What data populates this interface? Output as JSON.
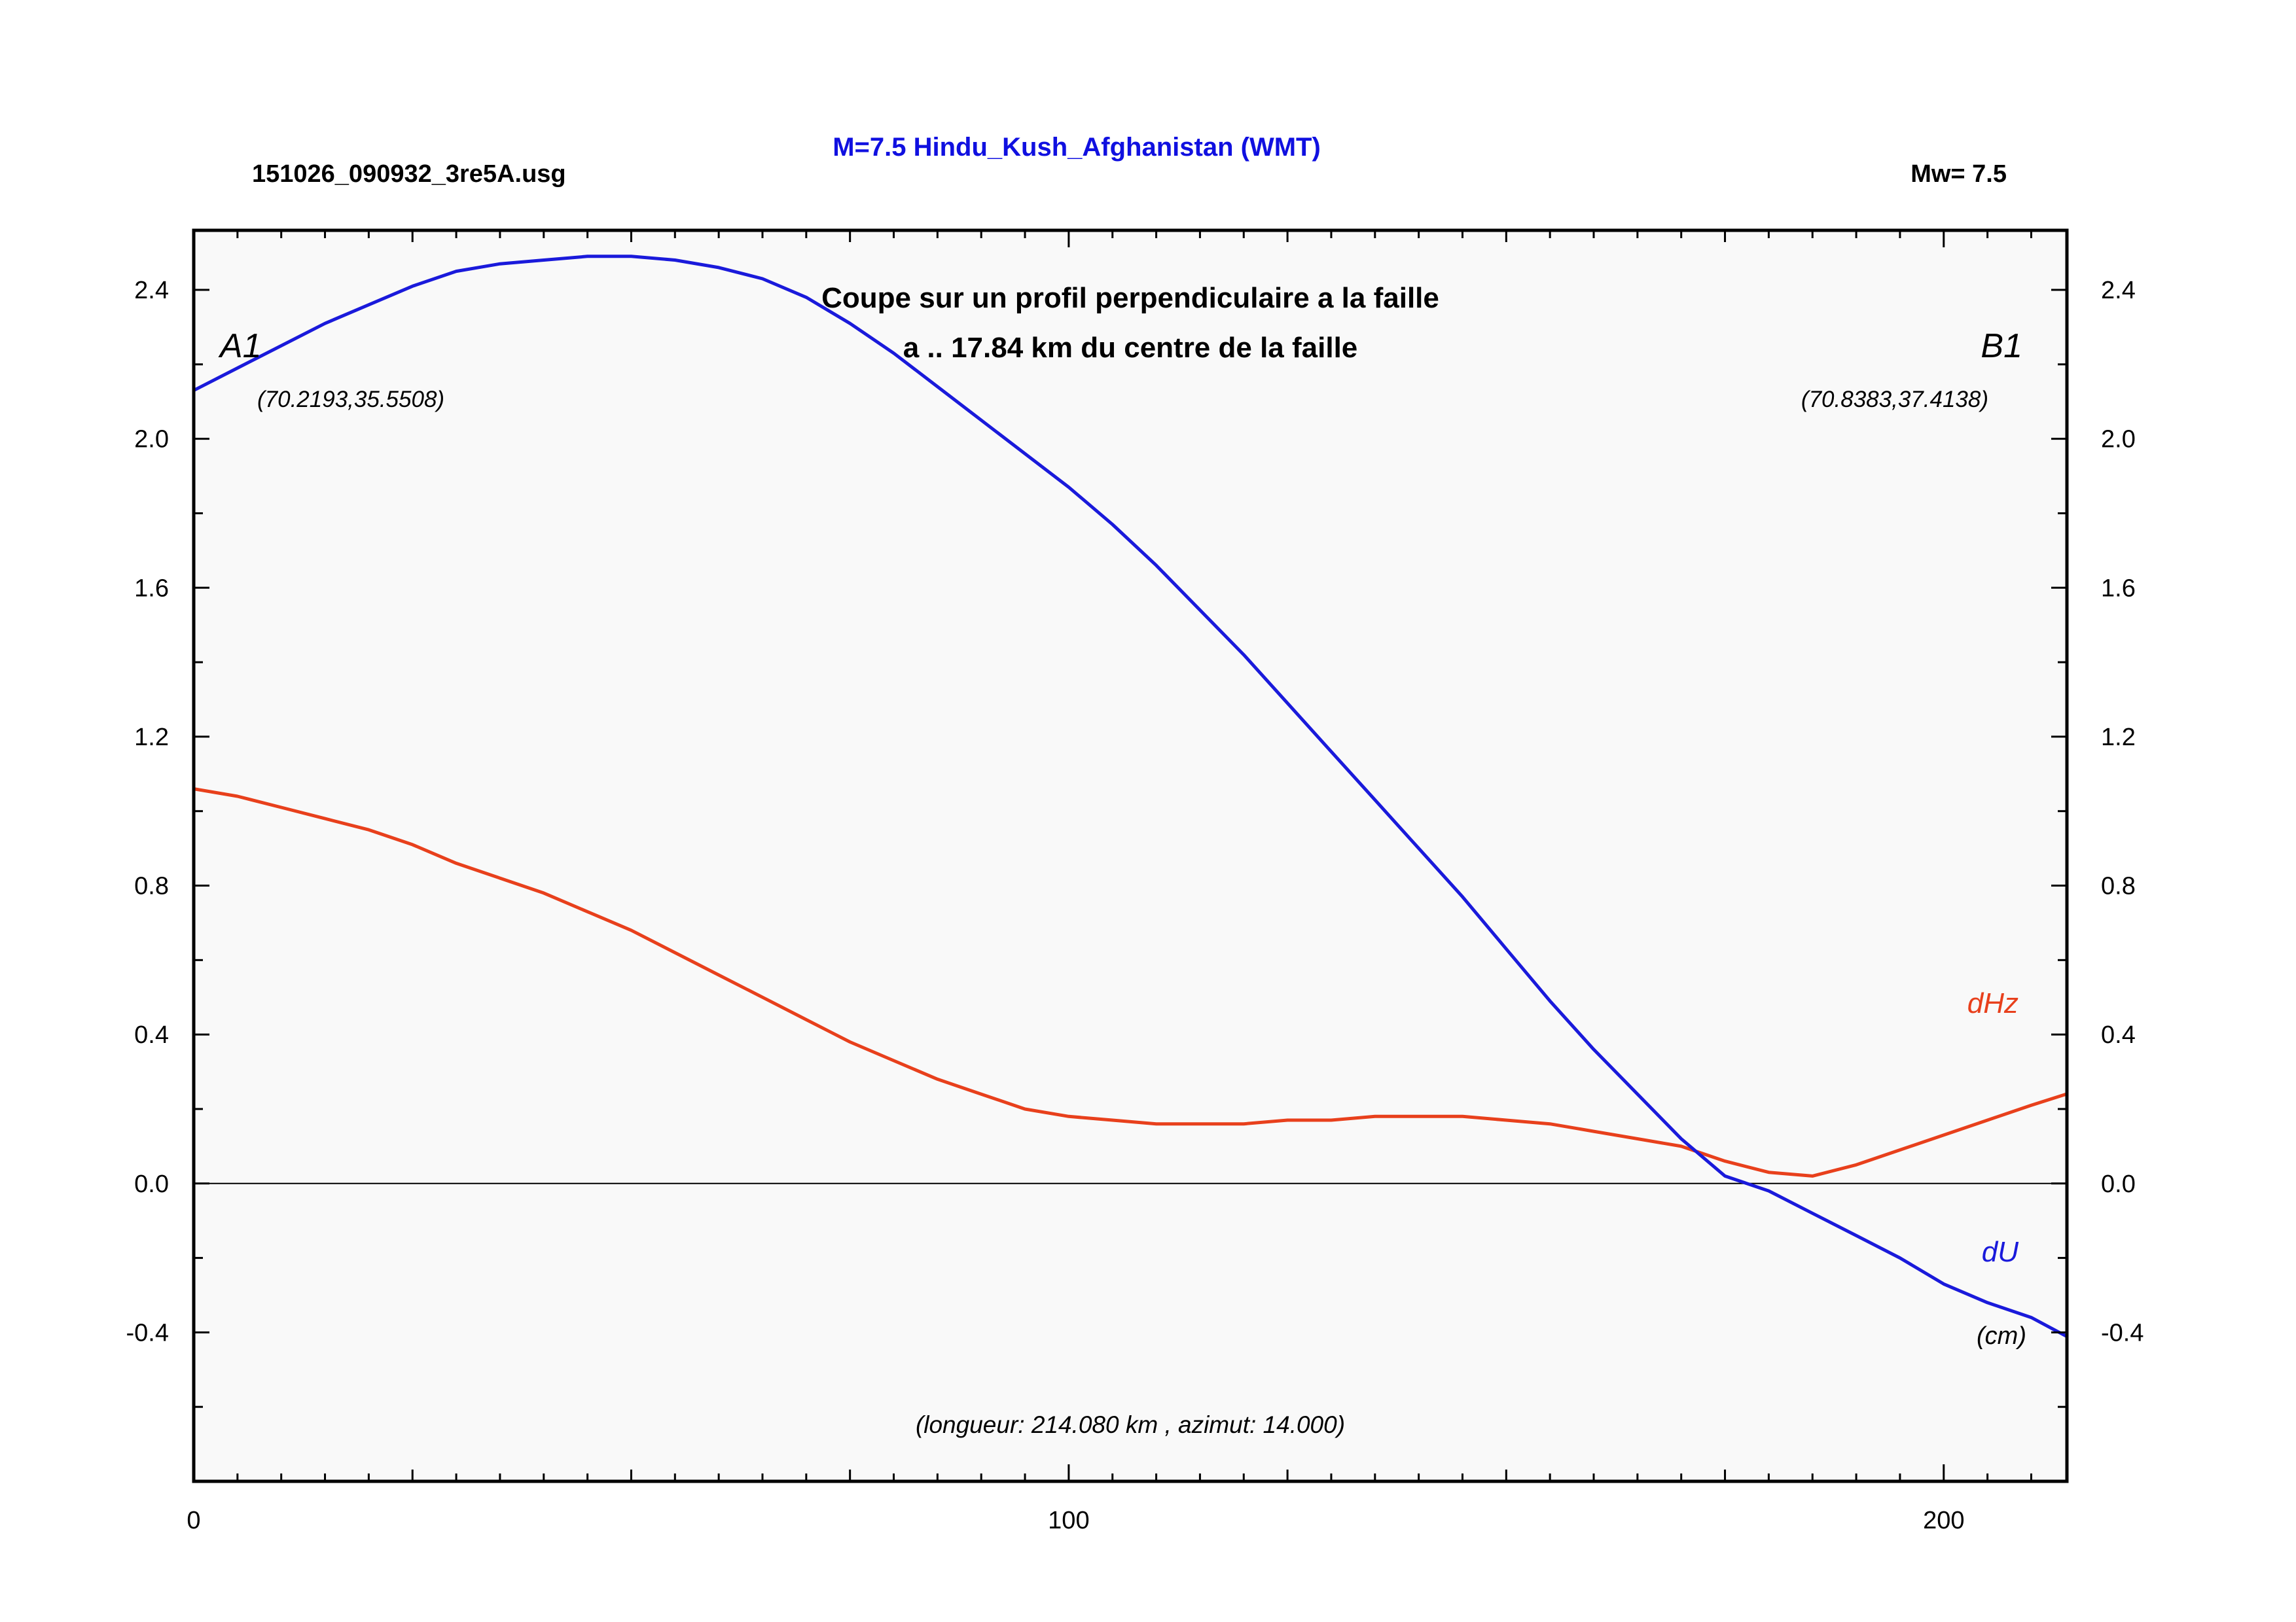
{
  "header": {
    "title": "M=7.5 Hindu_Kush_Afghanistan (WMT)",
    "file": "151026_090932_3re5A.usg",
    "magnitude": "Mw= 7.5"
  },
  "colors": {
    "title": "#1010e0",
    "du": "#1a1adb",
    "dhz": "#e8401c",
    "plot_bg": "#f9f9f9",
    "axis": "#000000"
  },
  "chart_data": {
    "type": "line",
    "subtitle_line1": "Coupe sur un profil perpendiculaire a la faille",
    "subtitle_line2": "a .. 17.84 km du centre de la faille",
    "xlim": [
      0,
      214.08
    ],
    "ylim": [
      -0.8,
      2.56
    ],
    "x_ticks": [
      "0",
      "100",
      "200"
    ],
    "y_ticks": [
      "2.4",
      "2.0",
      "1.6",
      "1.2",
      "0.8",
      "0.4",
      "0.0",
      "-0.4"
    ],
    "grid": false,
    "zero_line": true,
    "point_a": {
      "label": "A1",
      "coords": "(70.2193,35.5508)"
    },
    "point_b": {
      "label": "B1",
      "coords": "(70.8383,37.4138)"
    },
    "unit": "(cm)",
    "footer": "(longueur: 214.080 km , azimut: 14.000)",
    "series": [
      {
        "name": "dU",
        "color": "#1a1adb",
        "x": [
          0,
          5,
          10,
          15,
          20,
          25,
          30,
          35,
          40,
          45,
          50,
          55,
          60,
          65,
          70,
          75,
          80,
          85,
          90,
          95,
          100,
          105,
          110,
          115,
          120,
          125,
          130,
          135,
          140,
          145,
          150,
          155,
          160,
          165,
          170,
          175,
          180,
          185,
          190,
          195,
          200,
          205,
          210,
          214
        ],
        "values": [
          2.13,
          2.19,
          2.25,
          2.31,
          2.36,
          2.41,
          2.45,
          2.47,
          2.48,
          2.49,
          2.49,
          2.48,
          2.46,
          2.43,
          2.38,
          2.31,
          2.23,
          2.14,
          2.05,
          1.96,
          1.87,
          1.77,
          1.66,
          1.54,
          1.42,
          1.29,
          1.16,
          1.03,
          0.9,
          0.77,
          0.63,
          0.49,
          0.36,
          0.24,
          0.12,
          0.02,
          -0.02,
          -0.08,
          -0.14,
          -0.2,
          -0.27,
          -0.32,
          -0.36,
          -0.41
        ]
      },
      {
        "name": "dHz",
        "color": "#e8401c",
        "x": [
          0,
          5,
          10,
          15,
          20,
          25,
          30,
          35,
          40,
          45,
          50,
          55,
          60,
          65,
          70,
          75,
          80,
          85,
          90,
          95,
          100,
          105,
          110,
          115,
          120,
          125,
          130,
          135,
          140,
          145,
          150,
          155,
          160,
          165,
          170,
          175,
          180,
          185,
          190,
          195,
          200,
          205,
          210,
          214
        ],
        "values": [
          1.06,
          1.04,
          1.01,
          0.98,
          0.95,
          0.91,
          0.86,
          0.82,
          0.78,
          0.73,
          0.68,
          0.62,
          0.56,
          0.5,
          0.44,
          0.38,
          0.33,
          0.28,
          0.24,
          0.2,
          0.18,
          0.17,
          0.16,
          0.16,
          0.16,
          0.17,
          0.17,
          0.18,
          0.18,
          0.18,
          0.17,
          0.16,
          0.14,
          0.12,
          0.1,
          0.06,
          0.03,
          0.02,
          0.05,
          0.09,
          0.13,
          0.17,
          0.21,
          0.24
        ]
      }
    ]
  }
}
